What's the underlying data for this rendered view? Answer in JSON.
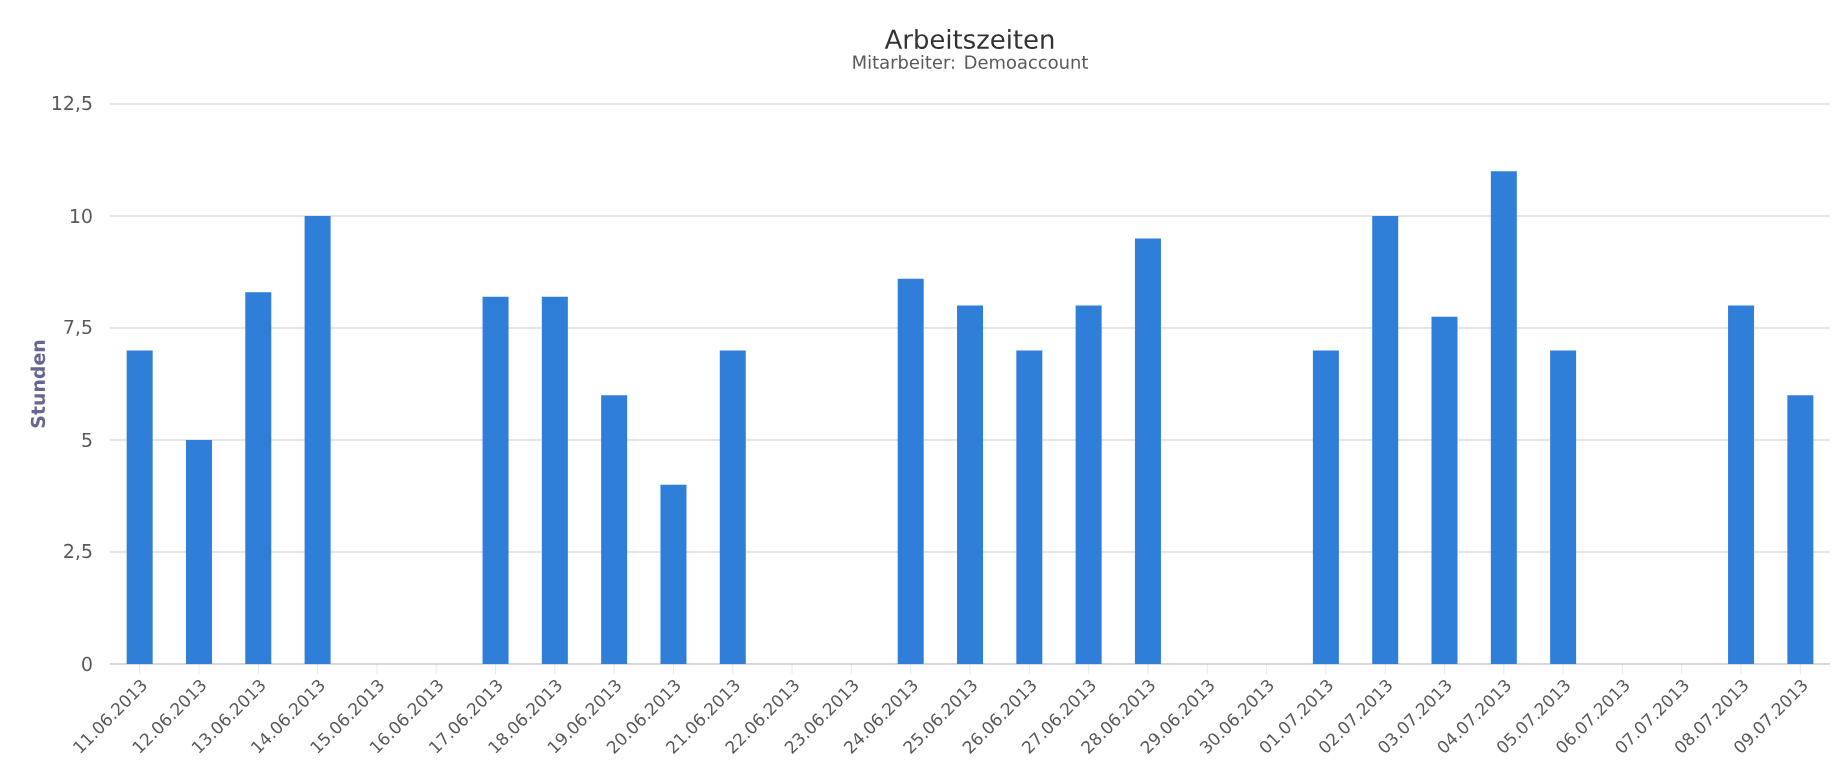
{
  "chart_data": {
    "type": "bar",
    "title": "Arbeitszeiten",
    "subtitle": "Mitarbeiter: Demoaccount",
    "ylabel": "Stunden",
    "categories": [
      "11.06.2013",
      "12.06.2013",
      "13.06.2013",
      "14.06.2013",
      "15.06.2013",
      "16.06.2013",
      "17.06.2013",
      "18.06.2013",
      "19.06.2013",
      "20.06.2013",
      "21.06.2013",
      "22.06.2013",
      "23.06.2013",
      "24.06.2013",
      "25.06.2013",
      "26.06.2013",
      "27.06.2013",
      "28.06.2013",
      "29.06.2013",
      "30.06.2013",
      "01.07.2013",
      "02.07.2013",
      "03.07.2013",
      "04.07.2013",
      "05.07.2013",
      "06.07.2013",
      "07.07.2013",
      "08.07.2013",
      "09.07.2013"
    ],
    "values": [
      7,
      5,
      8.3,
      10,
      0,
      0,
      8.2,
      8.2,
      6,
      4,
      7,
      0,
      0,
      8.6,
      8,
      7,
      8,
      9.5,
      0,
      0,
      7,
      10,
      7.75,
      11,
      7,
      0,
      0,
      8,
      6
    ],
    "color": "#2f7ed8",
    "ylim": [
      0,
      12.5
    ],
    "yticks": [
      0,
      {
        "value": 2.5,
        "label": "2,5"
      },
      5,
      {
        "value": 7.5,
        "label": "7,5"
      },
      10,
      {
        "value": 12.5,
        "label": "12,5"
      }
    ],
    "grid": "y"
  }
}
